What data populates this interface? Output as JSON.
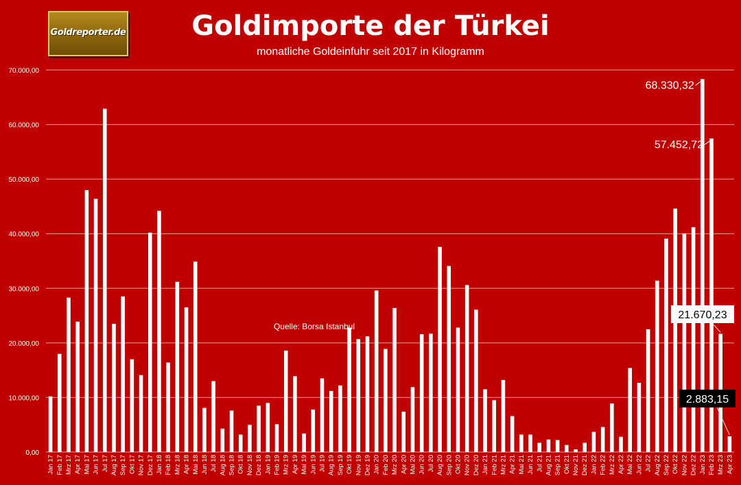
{
  "chart_data": {
    "type": "bar",
    "title": "Goldimporte der Türkei",
    "subtitle": "monatliche Goldeinfuhr seit 2017 in Kilogramm",
    "source_note": "Quelle: Borsa Istanbul",
    "ylim": [
      0,
      70000
    ],
    "yticks": [
      "0,00",
      "10.000,00",
      "20.000,00",
      "30.000,00",
      "40.000,00",
      "50.000,00",
      "60.000,00",
      "70.000,00"
    ],
    "grid": true,
    "categories": [
      "Jan 17",
      "Feb 17",
      "Mrz 17",
      "Apr 17",
      "Mai 17",
      "Jun 17",
      "Jul 17",
      "Aug 17",
      "Sep 17",
      "Okt 17",
      "Nov 17",
      "Dez 17",
      "Jan 18",
      "Feb 18",
      "Mrz 18",
      "Apr 18",
      "Mai 18",
      "Jun 18",
      "Jul 18",
      "Aug 18",
      "Sep 18",
      "Okt 18",
      "Nov 18",
      "Dez 18",
      "Jan 19",
      "Feb 19",
      "Mrz 19",
      "Apr 19",
      "Mai 19",
      "Jun 19",
      "Jul 19",
      "Aug 19",
      "Sep 19",
      "Okt 19",
      "Nov 19",
      "Dez 19",
      "Jan 20",
      "Feb 20",
      "Mrz 20",
      "Apr 20",
      "Mai 20",
      "Jun 20",
      "Jul 20",
      "Aug 20",
      "Sep 20",
      "Okt 20",
      "Nov 20",
      "Dez 20",
      "Jan 21",
      "Feb 21",
      "Mrz 21",
      "Apr 21",
      "Mai 21",
      "Jun 21",
      "Jul 21",
      "Aug 21",
      "Sep 21",
      "Okt 21",
      "Nov 21",
      "Dez 21",
      "Jan 22",
      "Feb 22",
      "Mrz 22",
      "Apr 22",
      "Mai 22",
      "Jun 22",
      "Jul 22",
      "Aug 22",
      "Sep 22",
      "Okt 22",
      "Nov 22",
      "Dez 22",
      "Jan 23",
      "Feb 23",
      "Mrz 23",
      "Apr 23"
    ],
    "values": [
      10200,
      18000,
      28300,
      23900,
      48000,
      46400,
      62900,
      23500,
      28500,
      17000,
      14100,
      40200,
      44200,
      16400,
      31200,
      26500,
      34900,
      8100,
      13000,
      4300,
      7600,
      3200,
      5000,
      8500,
      9000,
      5100,
      18600,
      13900,
      3400,
      7800,
      13500,
      11200,
      12200,
      22800,
      20700,
      21200,
      29600,
      18900,
      26400,
      7400,
      11900,
      21600,
      21700,
      37600,
      34100,
      22800,
      30600,
      26100,
      11500,
      9500,
      13200,
      6600,
      3200,
      3200,
      1700,
      2300,
      2200,
      1300,
      500,
      1700,
      3700,
      4600,
      8900,
      2800,
      15400,
      12700,
      22500,
      31400,
      39100,
      44600,
      40000,
      41200,
      68330.32,
      57452.72,
      21670.23,
      2883.15
    ],
    "series_color": "#ffffff",
    "annotations": [
      {
        "category": "Jan 23",
        "label": "68.330,32",
        "style": "plain"
      },
      {
        "category": "Feb 23",
        "label": "57.452,72",
        "style": "plain"
      },
      {
        "category": "Mrz 23",
        "label": "21.670,23",
        "style": "box-white"
      },
      {
        "category": "Apr 23",
        "label": "2.883,15",
        "style": "box-black"
      }
    ]
  },
  "logo_text": "Goldreporter.de",
  "colors": {
    "background": "#c00000",
    "bars": "#ffffff",
    "grid": "#e8a0a0"
  }
}
